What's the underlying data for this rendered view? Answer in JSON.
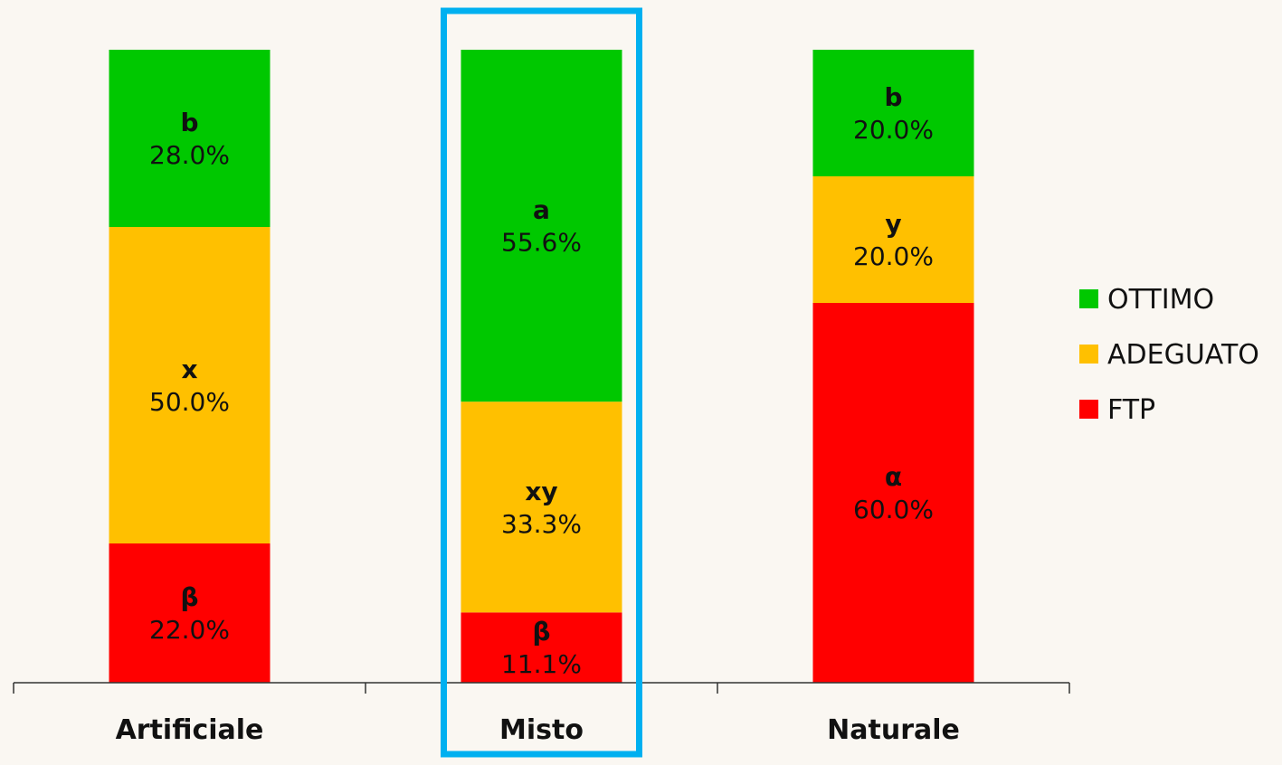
{
  "chart_data": {
    "type": "bar",
    "stacked": true,
    "normalized": true,
    "categories": [
      "Artificiale",
      "Misto",
      "Naturale"
    ],
    "series": [
      {
        "name": "FTP",
        "color": "#ff0000",
        "values": [
          22.0,
          11.1,
          60.0
        ],
        "labels": [
          "β",
          "β",
          "α"
        ]
      },
      {
        "name": "ADEGUATO",
        "color": "#ffc000",
        "values": [
          50.0,
          33.3,
          20.0
        ],
        "labels": [
          "x",
          "xy",
          "y"
        ]
      },
      {
        "name": "OTTIMO",
        "color": "#00c800",
        "values": [
          28.0,
          55.6,
          20.0
        ],
        "labels": [
          "b",
          "a",
          "b"
        ]
      }
    ],
    "value_format": "0.0%",
    "ylim": [
      0,
      100
    ],
    "highlighted_category": "Misto",
    "highlight_color": "#00b0f0",
    "legend_position": "right",
    "legend_order": [
      "OTTIMO",
      "ADEGUATO",
      "FTP"
    ],
    "grid": false
  }
}
